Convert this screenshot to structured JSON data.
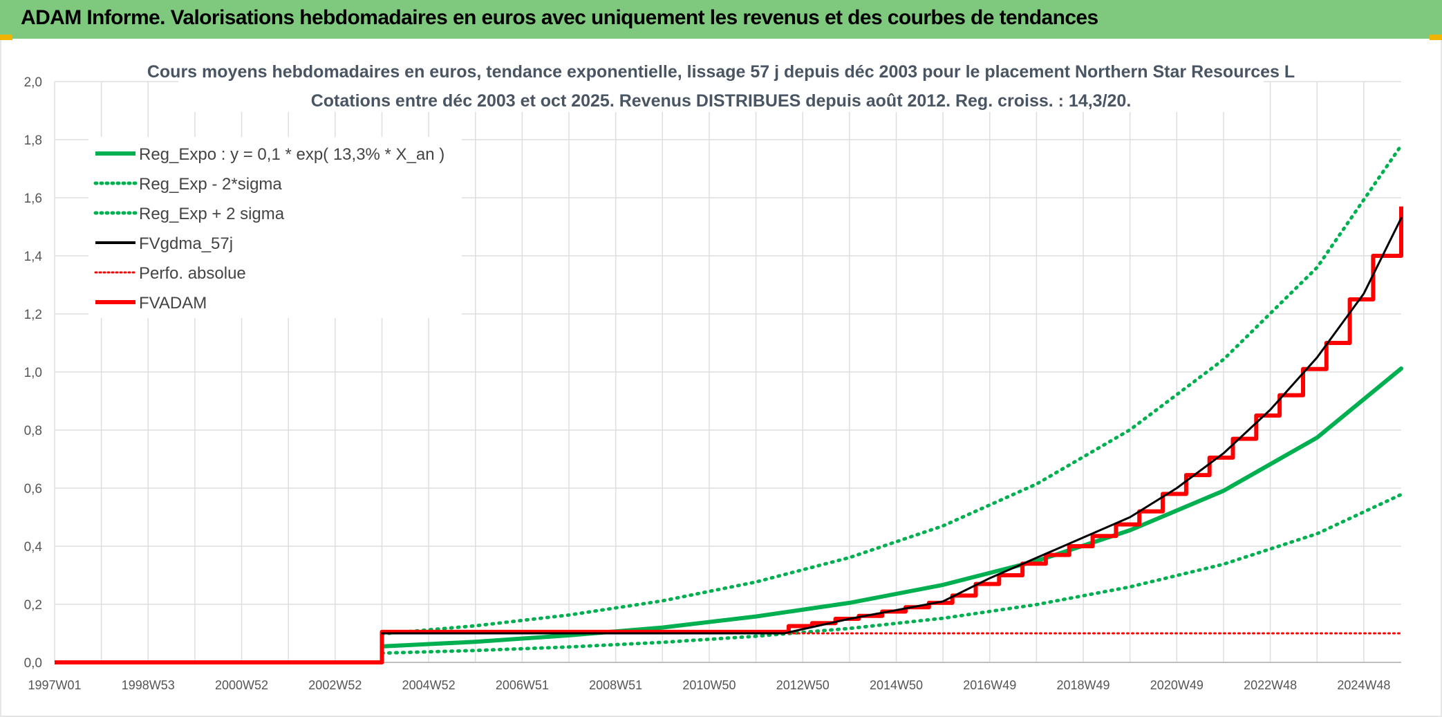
{
  "header": {
    "title": "ADAM Informe. Valorisations hebdomadaires en euros avec uniquement les revenus et des courbes de tendances"
  },
  "colors": {
    "banner": "#7fc97f",
    "reg_expo": "#00b050",
    "fv_gdma": "#000000",
    "fvadam": "#ff0000"
  },
  "chart_data": {
    "type": "line",
    "title": "Cours moyens hebdomadaires en euros, tendance exponentielle, lissage 57 j depuis déc 2003 pour le placement Northern Star Resources L",
    "subtitle": "Cotations entre déc 2003 et oct 2025. Revenus DISTRIBUES depuis août 2012. Reg. croiss. : 14,3/20.",
    "xlabel": "",
    "ylabel": "",
    "ylim": [
      0,
      2.0
    ],
    "xlim": [
      1997.0,
      2025.8
    ],
    "grid": true,
    "legend_position": "top-left",
    "y_ticks": [
      "0,0",
      "0,2",
      "0,4",
      "0,6",
      "0,8",
      "1,0",
      "1,2",
      "1,4",
      "1,6",
      "1,8",
      "2,0"
    ],
    "x_ticks": [
      {
        "label": "1997W01",
        "year": 1997.0
      },
      {
        "label": "1998W53",
        "year": 1999.0
      },
      {
        "label": "2000W52",
        "year": 2001.0
      },
      {
        "label": "2002W52",
        "year": 2003.0
      },
      {
        "label": "2004W52",
        "year": 2005.0
      },
      {
        "label": "2006W51",
        "year": 2007.0
      },
      {
        "label": "2008W51",
        "year": 2009.0
      },
      {
        "label": "2010W50",
        "year": 2011.0
      },
      {
        "label": "2012W50",
        "year": 2013.0
      },
      {
        "label": "2014W50",
        "year": 2015.0
      },
      {
        "label": "2016W49",
        "year": 2017.0
      },
      {
        "label": "2018W49",
        "year": 2019.0
      },
      {
        "label": "2020W49",
        "year": 2021.0
      },
      {
        "label": "2022W48",
        "year": 2023.0
      },
      {
        "label": "2024W48",
        "year": 2025.0
      }
    ],
    "series": [
      {
        "name": "Reg_Expo : y = 0,1 * exp( 13,3% *  X_an )",
        "style": "solid",
        "color": "#00b050",
        "x": [
          2004.0,
          2006.0,
          2008.0,
          2010.0,
          2012.0,
          2014.0,
          2016.0,
          2018.0,
          2020.0,
          2022.0,
          2024.0,
          2025.8
        ],
        "y": [
          0.055,
          0.071,
          0.093,
          0.12,
          0.158,
          0.205,
          0.267,
          0.349,
          0.455,
          0.591,
          0.774,
          1.012
        ]
      },
      {
        "name": "Reg_Exp - 2*sigma",
        "style": "dotted",
        "color": "#00b050",
        "x": [
          2004.0,
          2006.0,
          2008.0,
          2010.0,
          2012.0,
          2014.0,
          2016.0,
          2018.0,
          2020.0,
          2022.0,
          2024.0,
          2025.8
        ],
        "y": [
          0.032,
          0.041,
          0.053,
          0.069,
          0.09,
          0.117,
          0.152,
          0.199,
          0.26,
          0.338,
          0.443,
          0.578
        ]
      },
      {
        "name": "Reg_Exp + 2 sigma",
        "style": "dotted",
        "color": "#00b050",
        "x": [
          2004.0,
          2006.0,
          2008.0,
          2010.0,
          2012.0,
          2014.0,
          2016.0,
          2018.0,
          2020.0,
          2022.0,
          2024.0,
          2025.8
        ],
        "y": [
          0.098,
          0.126,
          0.163,
          0.212,
          0.277,
          0.361,
          0.47,
          0.614,
          0.801,
          1.043,
          1.36,
          1.78
        ]
      },
      {
        "name": "FVgdma_57j",
        "style": "solid",
        "color": "#000000",
        "x": [
          2004.0,
          2012.6,
          2014.0,
          2016.0,
          2017.0,
          2018.0,
          2019.0,
          2020.0,
          2021.0,
          2022.0,
          2023.0,
          2024.0,
          2025.0,
          2025.8
        ],
        "y": [
          0.1,
          0.1,
          0.15,
          0.21,
          0.29,
          0.36,
          0.43,
          0.5,
          0.6,
          0.72,
          0.87,
          1.05,
          1.27,
          1.53
        ]
      },
      {
        "name": "Perfo. absolue",
        "style": "dotted",
        "color": "#ff0000",
        "x": [
          2004.0,
          2025.8
        ],
        "y": [
          0.1,
          0.1
        ]
      },
      {
        "name": "FVADAM",
        "style": "solid",
        "color": "#ff0000",
        "x": [
          1997.0,
          2004.0,
          2004.0,
          2012.7,
          2012.7,
          2013.2,
          2013.2,
          2013.7,
          2013.7,
          2014.2,
          2014.2,
          2014.7,
          2014.7,
          2015.2,
          2015.2,
          2015.7,
          2015.7,
          2016.2,
          2016.2,
          2016.7,
          2016.7,
          2017.2,
          2017.2,
          2017.7,
          2017.7,
          2018.2,
          2018.2,
          2018.7,
          2018.7,
          2019.2,
          2019.2,
          2019.7,
          2019.7,
          2020.2,
          2020.2,
          2020.7,
          2020.7,
          2021.2,
          2021.2,
          2021.7,
          2021.7,
          2022.2,
          2022.2,
          2022.7,
          2022.7,
          2023.2,
          2023.2,
          2023.7,
          2023.7,
          2024.2,
          2024.2,
          2024.7,
          2024.7,
          2025.2,
          2025.2,
          2025.8,
          2025.8
        ],
        "y": [
          0.0,
          0.0,
          0.105,
          0.105,
          0.125,
          0.125,
          0.135,
          0.135,
          0.15,
          0.15,
          0.16,
          0.16,
          0.175,
          0.175,
          0.19,
          0.19,
          0.205,
          0.205,
          0.23,
          0.23,
          0.27,
          0.27,
          0.3,
          0.3,
          0.34,
          0.34,
          0.37,
          0.37,
          0.4,
          0.4,
          0.435,
          0.435,
          0.475,
          0.475,
          0.52,
          0.52,
          0.58,
          0.58,
          0.645,
          0.645,
          0.705,
          0.705,
          0.77,
          0.77,
          0.85,
          0.85,
          0.92,
          0.92,
          1.01,
          1.01,
          1.1,
          1.1,
          1.25,
          1.25,
          1.4,
          1.4,
          1.57
        ]
      }
    ]
  }
}
